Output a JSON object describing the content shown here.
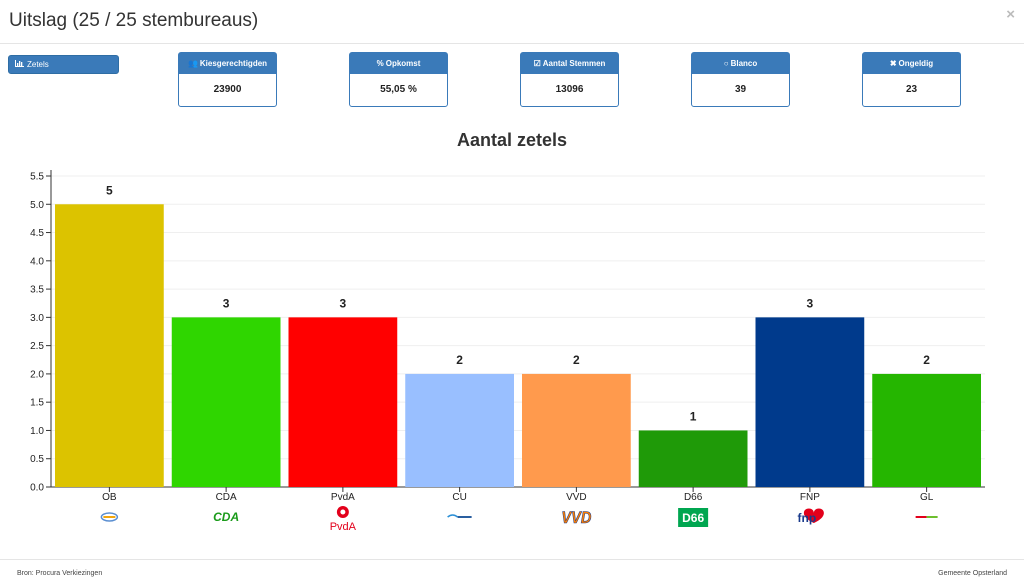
{
  "header": {
    "title": "Uitslag (25 / 25 stembureaus)",
    "close": "×"
  },
  "zetels_button": {
    "label": "Zetels",
    "icon": "bar-chart-icon"
  },
  "stats": [
    {
      "label": "Kiesgerechtigden",
      "value": "23900",
      "icon": "users-icon",
      "glyph": "👥"
    },
    {
      "label": "Opkomst",
      "value": "55,05 %",
      "icon": "percent-icon",
      "glyph": "%"
    },
    {
      "label": "Aantal Stemmen",
      "value": "13096",
      "icon": "checkbox-icon",
      "glyph": "☑"
    },
    {
      "label": "Blanco",
      "value": "39",
      "icon": "circle-icon",
      "glyph": "○"
    },
    {
      "label": "Ongeldig",
      "value": "23",
      "icon": "x-icon",
      "glyph": "✖"
    }
  ],
  "chart_data": {
    "type": "bar",
    "title": "Aantal zetels",
    "categories": [
      "OB",
      "CDA",
      "PvdA",
      "CU",
      "VVD",
      "D66",
      "FNP",
      "GL"
    ],
    "values": [
      5,
      3,
      3,
      2,
      2,
      1,
      3,
      2
    ],
    "colors": [
      "#dcc300",
      "#2fd600",
      "#ff0000",
      "#99bfff",
      "#ff9a4d",
      "#1f9a08",
      "#003a8c",
      "#25b600"
    ],
    "ylim": [
      0,
      5.5
    ],
    "yticks": [
      "0.0",
      "0.5",
      "1.0",
      "1.5",
      "2.0",
      "2.5",
      "3.0",
      "3.5",
      "4.0",
      "4.5",
      "5.0",
      "5.5"
    ],
    "grid": true,
    "logos": [
      {
        "icon": "ob-logo-icon",
        "text": ""
      },
      {
        "icon": "cda-logo-icon",
        "text": "CDA",
        "color": "#1a9b1a"
      },
      {
        "icon": "pvda-logo-icon",
        "text": "PvdA",
        "color": "#e3001b"
      },
      {
        "icon": "cu-logo-icon",
        "text": ""
      },
      {
        "icon": "vvd-logo-icon",
        "text": "VVD",
        "color": "#ff7f00"
      },
      {
        "icon": "d66-logo-icon",
        "text": "D66",
        "color": "#00a650"
      },
      {
        "icon": "fnp-logo-icon",
        "text": "fnp",
        "color": "#1a3b8c"
      },
      {
        "icon": "gl-logo-icon",
        "text": ""
      }
    ]
  },
  "footer": {
    "source": "Bron: Procura Verkiezingen",
    "owner": "Gemeente Opsterland"
  }
}
